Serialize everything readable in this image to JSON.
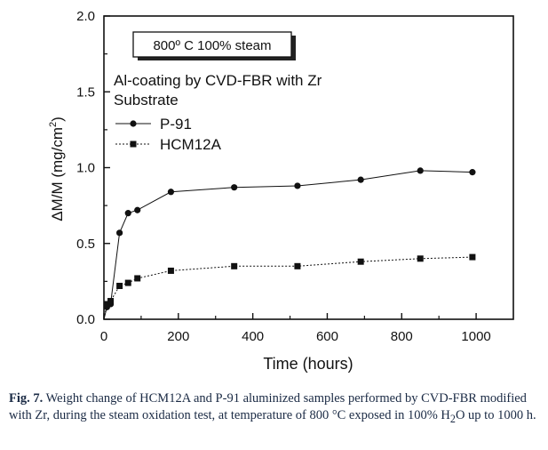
{
  "chart_data": {
    "type": "line",
    "xlabel": "Time (hours)",
    "ylabel_main": "ΔM/M (mg/cm",
    "ylabel_sup": "2",
    "ylabel_close": ")",
    "xlim": [
      0,
      1100
    ],
    "ylim": [
      0,
      2.0
    ],
    "xticks": [
      0,
      200,
      400,
      600,
      800,
      1000
    ],
    "yticks": [
      0.0,
      0.5,
      1.0,
      1.5,
      2.0
    ],
    "xtick_labels": [
      "0",
      "200",
      "400",
      "600",
      "800",
      "1000"
    ],
    "ytick_labels": [
      "0.0",
      "0.5",
      "1.0",
      "1.5",
      "2.0"
    ],
    "grid": false,
    "legend_placement": "top-left",
    "boxed_annotation": "800º C 100% steam",
    "legend_title_line1": "Al-coating by CVD-FBR with Zr",
    "legend_title_line2": "Substrate",
    "series": [
      {
        "name": "P-91",
        "marker": "circle",
        "line": "solid",
        "x": [
          0,
          8,
          18,
          42,
          65,
          90,
          180,
          350,
          520,
          690,
          850,
          990
        ],
        "y": [
          0.0,
          0.08,
          0.1,
          0.57,
          0.7,
          0.72,
          0.84,
          0.87,
          0.88,
          0.92,
          0.98,
          0.97
        ]
      },
      {
        "name": "HCM12A",
        "marker": "square",
        "line": "dotted",
        "x": [
          0,
          8,
          18,
          42,
          65,
          90,
          180,
          350,
          520,
          690,
          850,
          990
        ],
        "y": [
          0.0,
          0.1,
          0.12,
          0.22,
          0.24,
          0.27,
          0.32,
          0.35,
          0.35,
          0.38,
          0.4,
          0.41
        ]
      }
    ]
  },
  "caption": {
    "label": "Fig. 7.",
    "text_part1": " Weight change of HCM12A and P-91 aluminized samples performed by CVD-FBR modified with Zr, during the steam oxidation test, at temperature of 800 °C exposed in 100% H",
    "sub": "2",
    "text_part2": "O up to 1000 h."
  }
}
